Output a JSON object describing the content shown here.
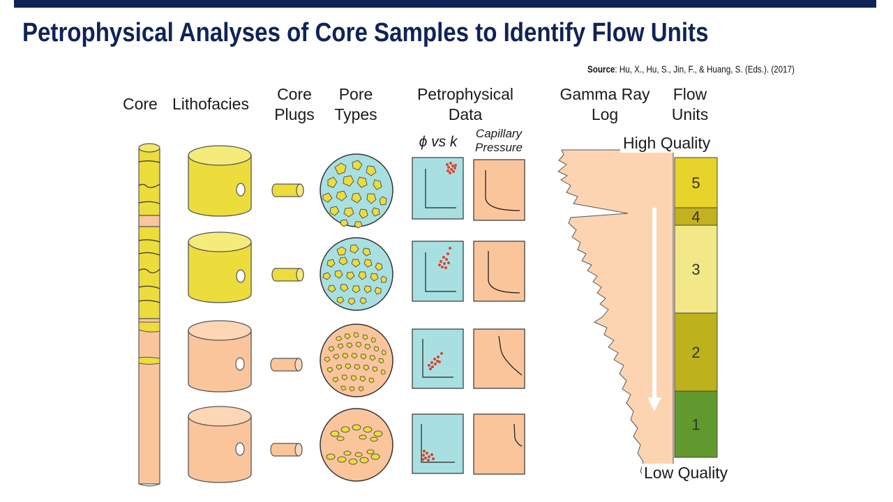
{
  "slide": {
    "title": "Petrophysical Analyses of Core Samples to Identify Flow Units",
    "source_label": "Source",
    "source_text": ": Hu, X., Hu, S., Jin, F., & Huang, S. (Eds.). (2017)"
  },
  "columns": {
    "core": "Core",
    "lithofacies": "Lithofacies",
    "core_plugs": [
      "Core",
      "Plugs"
    ],
    "pore_types": [
      "Pore",
      "Types"
    ],
    "petrophysical_data": [
      "Petrophysical",
      "Data"
    ],
    "phi_vs_k": "ϕ vs k",
    "capillary_pressure": [
      "Capillary",
      "Pressure"
    ],
    "gamma_ray_log": [
      "Gamma Ray",
      "Log"
    ],
    "flow_units": [
      "Flow",
      "Units"
    ]
  },
  "quality": {
    "high": "High Quality",
    "low": "Low Quality"
  },
  "flow_units": [
    {
      "number": "5",
      "color": "#e8d32a"
    },
    {
      "number": "4",
      "color": "#c2b21e"
    },
    {
      "number": "3",
      "color": "#f2e888"
    },
    {
      "number": "2",
      "color": "#bdb21c"
    },
    {
      "number": "1",
      "color": "#62992e"
    }
  ],
  "colors": {
    "title": "#0f2358",
    "yellow_facies": "#ecdc3c",
    "orange_facies": "#fbc59c",
    "pore_water": "#a8e0e2",
    "data_points": "#e0402a",
    "gamma_fill": "#fdd4b2"
  }
}
